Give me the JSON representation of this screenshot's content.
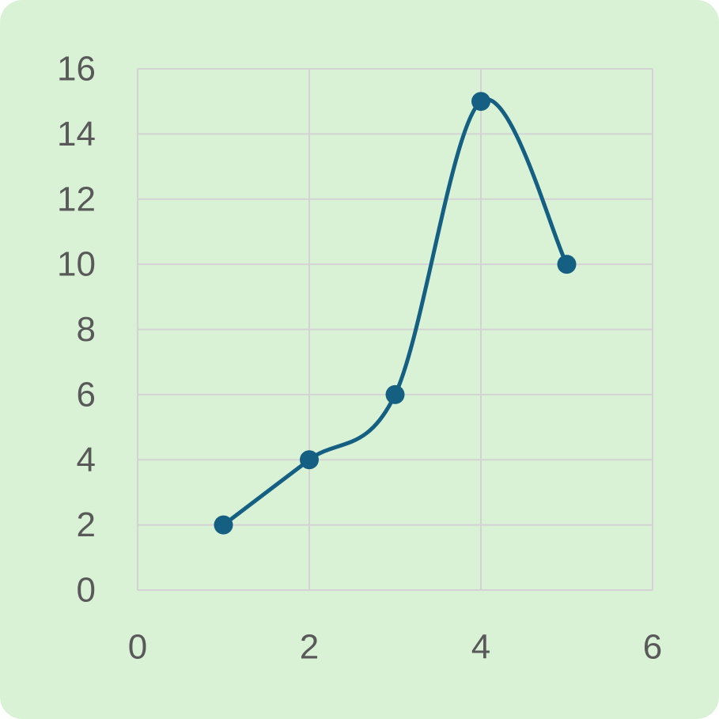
{
  "chart_data": {
    "type": "scatter",
    "series": [
      {
        "x": [
          1,
          2,
          3,
          4,
          5
        ],
        "y": [
          2,
          4,
          6,
          15,
          10
        ]
      }
    ],
    "smooth": true,
    "markers": true,
    "xlim": [
      0,
      6
    ],
    "ylim": [
      0,
      16
    ],
    "x_ticks": [
      "0",
      "2",
      "4",
      "6"
    ],
    "y_ticks": [
      "0",
      "2",
      "4",
      "6",
      "8",
      "10",
      "12",
      "14",
      "16"
    ],
    "grid": true,
    "legend": "none"
  },
  "colors": {
    "background": "#d9f2d6",
    "series": "#145f82",
    "grid": "#d3d3d3",
    "tick_text": "#595959"
  }
}
